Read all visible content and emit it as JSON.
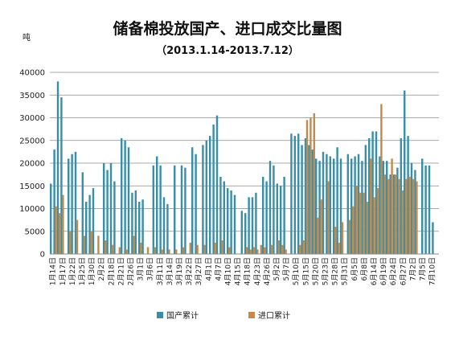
{
  "chart_data": {
    "type": "bar",
    "title": "储备棉投放国产、进口成交比量图",
    "subtitle": "（2013.1.14-2013.7.12）",
    "ylabel": "吨",
    "ylim": [
      0,
      40000
    ],
    "yticks": [
      0,
      5000,
      10000,
      15000,
      20000,
      25000,
      30000,
      35000,
      40000
    ],
    "grid": true,
    "legend_position": "bottom",
    "x_tick_labels": [
      "1月14日",
      "1月17日",
      "1月22日",
      "1月25日",
      "1月30日",
      "2月2日",
      "2月18日",
      "2月21日",
      "2月26日",
      "3月1日",
      "3月6日",
      "3月11日",
      "3月14日",
      "3月19日",
      "3月22日",
      "3月27日",
      "4月1日",
      "4月7日",
      "4月10日",
      "4月15日",
      "4月18日",
      "4月23日",
      "4月26日",
      "5月2日",
      "5月7日",
      "5月10日",
      "5月15日",
      "5月20日",
      "5月23日",
      "5月28日",
      "5月31日",
      "6月5日",
      "6月8日",
      "6月14日",
      "6月19日",
      "6月24日",
      "6月27日",
      "7月2日",
      "7月5日",
      "7月10日"
    ],
    "series": [
      {
        "name": "国产累计",
        "color": "#3a8fa8",
        "values": [
          15500,
          23000,
          38000,
          34500,
          21000,
          22000,
          22500,
          18000,
          11500,
          13000,
          14500,
          20000,
          18500,
          20000,
          16000,
          25500,
          25000,
          23500,
          13500,
          14000,
          11500,
          12000,
          19500,
          21500,
          19500,
          12500,
          11000,
          19500,
          19500,
          19000,
          23500,
          22000,
          24000,
          25000,
          26000,
          28500,
          30500,
          17000,
          16000,
          14500,
          14000,
          13000,
          9500,
          9000,
          12500,
          12500,
          13500,
          17000,
          16000,
          20500,
          19500,
          15500,
          15000,
          17000,
          26500,
          26000,
          26500,
          24000,
          25500,
          24000,
          23000,
          21000,
          20500,
          22500,
          22000,
          21500,
          21000,
          23500,
          21000,
          22000,
          21000,
          21500,
          22000,
          20500,
          24000,
          25500,
          27000,
          27000,
          21500,
          20500,
          20500,
          17500,
          17500,
          19000,
          25500,
          36000,
          26000,
          20000,
          18500,
          21000,
          19500,
          19500,
          7000
        ],
        "dates": [
          0,
          1,
          2,
          3,
          5,
          6,
          7,
          9,
          10,
          11,
          12,
          15,
          16,
          17,
          18,
          20,
          21,
          22,
          23,
          24,
          25,
          26,
          29,
          30,
          31,
          32,
          33,
          35,
          37,
          38,
          40,
          41,
          43,
          44,
          45,
          46,
          47,
          48,
          49,
          50,
          51,
          52,
          54,
          55,
          56,
          57,
          58,
          60,
          61,
          62,
          63,
          64,
          65,
          66,
          68,
          69,
          70,
          71,
          72,
          73,
          74,
          75,
          76,
          77,
          78,
          79,
          80,
          81,
          82,
          84,
          85,
          86,
          87,
          88,
          89,
          90,
          91,
          92,
          93,
          94,
          95,
          96,
          97,
          98,
          99,
          100,
          101,
          102,
          103,
          105,
          106,
          107,
          108
        ]
      },
      {
        "name": "进口累计",
        "color": "#c7894a",
        "values": [
          10500,
          9000,
          13000,
          5000,
          7500,
          4000,
          5000,
          4000,
          3000,
          2000,
          1500,
          1000,
          4000,
          2500,
          1500,
          1500,
          1000,
          1000,
          1000,
          1500,
          2500,
          2000,
          2000,
          2500,
          3000,
          1500,
          1500,
          1000,
          1500,
          1000,
          2000,
          1500,
          2000,
          3000,
          2000,
          1000,
          2000,
          3000,
          29500,
          30000,
          31000,
          8000,
          12000,
          16000,
          6000,
          2500,
          7000,
          7500,
          10500,
          15000,
          13500,
          13500,
          11500,
          21000,
          12500,
          14500,
          33000,
          17500,
          16500,
          21000,
          17500,
          16500,
          14000,
          16500,
          17000,
          16500,
          16000
        ],
        "dates": [
          1,
          2,
          3,
          5,
          7,
          9,
          11,
          13,
          15,
          17,
          19,
          21,
          23,
          25,
          27,
          29,
          31,
          33,
          35,
          37,
          39,
          41,
          43,
          46,
          48,
          50,
          55,
          56,
          57,
          58,
          59,
          60,
          62,
          64,
          65,
          66,
          70,
          71,
          72,
          73,
          74,
          75,
          76,
          78,
          80,
          81,
          82,
          84,
          85,
          86,
          87,
          88,
          89,
          90,
          91,
          92,
          93,
          94,
          95,
          96,
          97,
          98,
          99,
          100,
          101,
          102,
          103
        ]
      }
    ]
  },
  "legend": {
    "domestic_label": "国产累计",
    "import_label": "进口累计"
  }
}
